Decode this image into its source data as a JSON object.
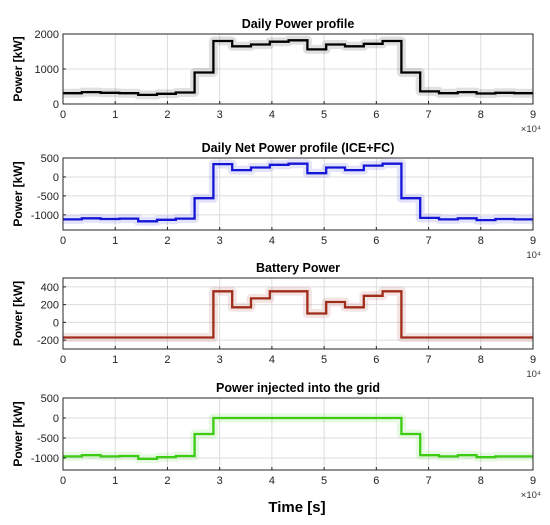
{
  "figure": {
    "xlabel": "Time [s]",
    "x_multiplier_exponent": "4"
  },
  "chart_data": [
    {
      "type": "line",
      "title": "Daily Power profile",
      "ylabel": "Power [kW]",
      "xlim": [
        0,
        90000
      ],
      "ylim": [
        0,
        2000
      ],
      "x_ticks": [
        0,
        1,
        2,
        3,
        4,
        5,
        6,
        7,
        8,
        9
      ],
      "y_ticks": [
        0,
        1000,
        2000
      ],
      "x_multiplier": "×10⁴",
      "grid": true,
      "series": [
        {
          "color": "#000000",
          "x": [
            0,
            3600,
            7200,
            10800,
            14400,
            18000,
            21600,
            25200,
            28800,
            32400,
            36000,
            39600,
            43200,
            46800,
            50400,
            54000,
            57600,
            61200,
            64800,
            68400,
            72000,
            75600,
            79200,
            82800,
            86400
          ],
          "y": [
            310,
            340,
            320,
            310,
            260,
            290,
            330,
            900,
            1800,
            1650,
            1700,
            1780,
            1820,
            1560,
            1700,
            1650,
            1720,
            1800,
            900,
            360,
            310,
            340,
            300,
            320,
            310
          ]
        }
      ]
    },
    {
      "type": "line",
      "title": "Daily Net Power profile (ICE+FC)",
      "ylabel": "Power [kW]",
      "xlim": [
        0,
        90000
      ],
      "ylim": [
        -1400,
        500
      ],
      "x_ticks": [
        0,
        1,
        2,
        3,
        4,
        5,
        6,
        7,
        8,
        9
      ],
      "y_ticks": [
        -1000,
        -500,
        0,
        500
      ],
      "x_multiplier": "10⁴",
      "grid": true,
      "series": [
        {
          "color": "#1515d8",
          "x": [
            0,
            3600,
            7200,
            10800,
            14400,
            18000,
            21600,
            25200,
            28800,
            32400,
            36000,
            39600,
            43200,
            46800,
            50400,
            54000,
            57600,
            61200,
            64800,
            68400,
            72000,
            75600,
            79200,
            82800,
            86400
          ],
          "y": [
            -1120,
            -1090,
            -1110,
            -1100,
            -1170,
            -1130,
            -1100,
            -560,
            340,
            180,
            250,
            320,
            350,
            100,
            250,
            180,
            300,
            350,
            -560,
            -1080,
            -1120,
            -1090,
            -1140,
            -1110,
            -1120
          ]
        }
      ]
    },
    {
      "type": "line",
      "title": "Battery Power",
      "ylabel": "Power [kW]",
      "xlim": [
        0,
        90000
      ],
      "ylim": [
        -300,
        500
      ],
      "x_ticks": [
        0,
        1,
        2,
        3,
        4,
        5,
        6,
        7,
        8,
        9
      ],
      "y_ticks": [
        -200,
        0,
        200,
        400
      ],
      "x_multiplier": "10⁴",
      "grid": true,
      "series": [
        {
          "color": "#a02c1a",
          "x": [
            0,
            3600,
            7200,
            10800,
            14400,
            18000,
            21600,
            25200,
            28800,
            32400,
            36000,
            39600,
            43200,
            46800,
            50400,
            54000,
            57600,
            61200,
            64800,
            68400,
            72000,
            75600,
            79200,
            82800,
            86400
          ],
          "y": [
            -170,
            -170,
            -170,
            -170,
            -170,
            -170,
            -170,
            -170,
            350,
            170,
            270,
            350,
            350,
            100,
            230,
            170,
            300,
            350,
            -170,
            -170,
            -170,
            -170,
            -170,
            -170,
            -170
          ]
        }
      ]
    },
    {
      "type": "line",
      "title": "Power injected into the grid",
      "ylabel": "Power [kW]",
      "xlim": [
        0,
        90000
      ],
      "ylim": [
        -1300,
        500
      ],
      "x_ticks": [
        0,
        1,
        2,
        3,
        4,
        5,
        6,
        7,
        8,
        9
      ],
      "y_ticks": [
        -1000,
        -500,
        0,
        500
      ],
      "x_multiplier": "×10⁴",
      "grid": true,
      "series": [
        {
          "color": "#3ccc14",
          "x": [
            0,
            3600,
            7200,
            10800,
            14400,
            18000,
            21600,
            25200,
            28800,
            32400,
            36000,
            39600,
            43200,
            46800,
            50400,
            54000,
            57600,
            61200,
            64800,
            68400,
            72000,
            75600,
            79200,
            82800,
            86400
          ],
          "y": [
            -960,
            -930,
            -960,
            -950,
            -1020,
            -980,
            -950,
            -400,
            0,
            0,
            0,
            0,
            0,
            0,
            0,
            0,
            0,
            0,
            -400,
            -930,
            -960,
            -930,
            -980,
            -960,
            -960
          ]
        }
      ]
    }
  ]
}
